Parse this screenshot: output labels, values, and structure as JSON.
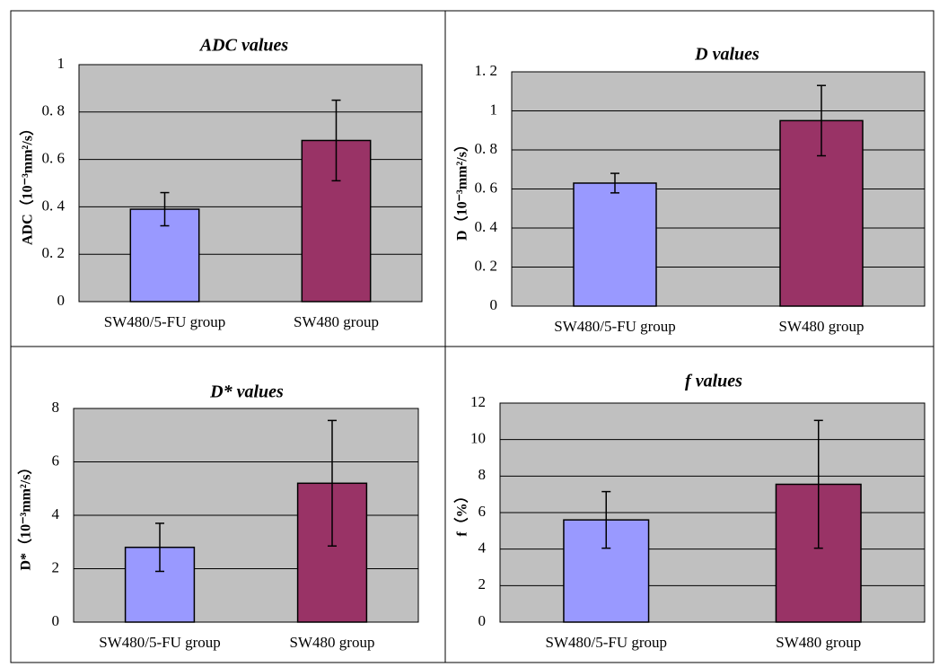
{
  "chart_data": [
    {
      "type": "bar",
      "title": "ADC values",
      "ylabel": "ADC（10⁻³mm²/s）",
      "categories": [
        "SW480/5-FU group",
        "SW480 group"
      ],
      "series": [
        {
          "colors": [
            "#9999ff",
            "#993366"
          ],
          "values": [
            0.39,
            0.68
          ],
          "errors": [
            0.07,
            0.17
          ]
        }
      ],
      "ylim": [
        0,
        1
      ],
      "yticks": [
        0,
        {
          "value": 0.2,
          "label": "0. 2"
        },
        {
          "value": 0.4,
          "label": "0. 4"
        },
        {
          "value": 0.6,
          "label": "0. 6"
        },
        {
          "value": 0.8,
          "label": "0. 8"
        },
        1
      ],
      "grid": true
    },
    {
      "type": "bar",
      "title": "D values",
      "ylabel": "D（10⁻³mm²/s）",
      "categories": [
        "SW480/5-FU group",
        "SW480 group"
      ],
      "series": [
        {
          "colors": [
            "#9999ff",
            "#993366"
          ],
          "values": [
            0.63,
            0.95
          ],
          "errors": [
            0.05,
            0.18
          ]
        }
      ],
      "ylim": [
        0,
        1.2
      ],
      "yticks": [
        0,
        {
          "value": 0.2,
          "label": "0. 2"
        },
        {
          "value": 0.4,
          "label": "0. 4"
        },
        {
          "value": 0.6,
          "label": "0. 6"
        },
        {
          "value": 0.8,
          "label": "0. 8"
        },
        1,
        {
          "value": 1.2,
          "label": "1. 2"
        }
      ],
      "grid": true
    },
    {
      "type": "bar",
      "title": "D* values",
      "ylabel": "D*（10⁻³mm²/s）",
      "categories": [
        "SW480/5-FU group",
        "SW480 group"
      ],
      "series": [
        {
          "colors": [
            "#9999ff",
            "#993366"
          ],
          "values": [
            2.8,
            5.2
          ],
          "errors": [
            0.9,
            2.35
          ]
        }
      ],
      "ylim": [
        0,
        8
      ],
      "yticks": [
        0,
        2,
        4,
        6,
        8
      ],
      "grid": true
    },
    {
      "type": "bar",
      "title": "f values",
      "ylabel": "f（%）",
      "categories": [
        "SW480/5-FU group",
        "SW480 group"
      ],
      "series": [
        {
          "colors": [
            "#9999ff",
            "#993366"
          ],
          "values": [
            5.6,
            7.55
          ],
          "errors": [
            1.55,
            3.5
          ]
        }
      ],
      "ylim": [
        0,
        12
      ],
      "yticks": [
        0,
        2,
        4,
        6,
        8,
        10,
        12
      ],
      "grid": true
    }
  ]
}
